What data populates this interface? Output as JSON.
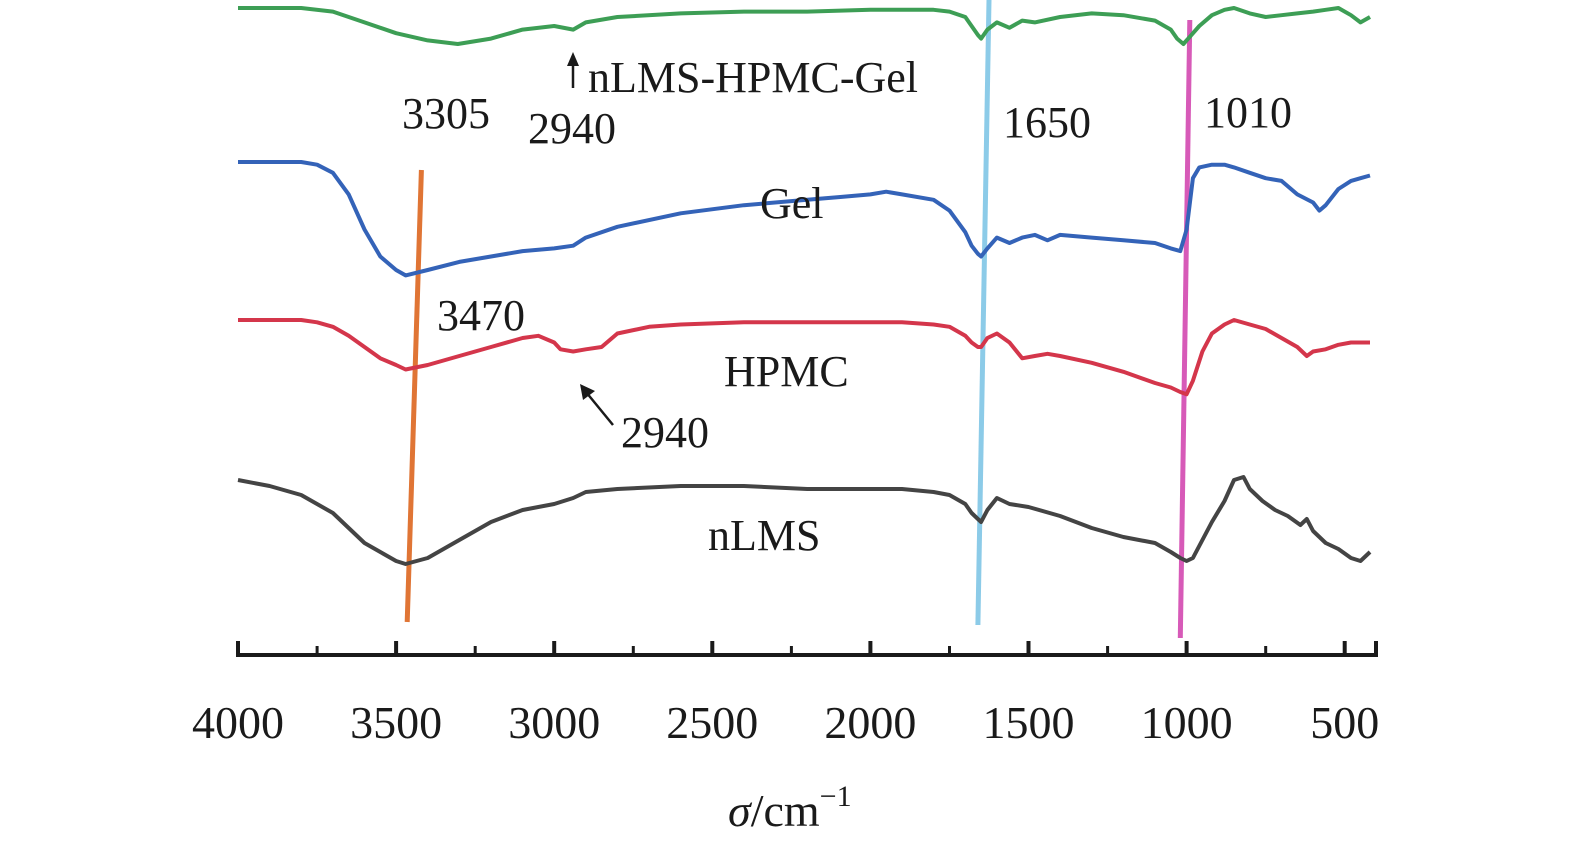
{
  "chart_data": {
    "type": "line",
    "title": "",
    "xlabel_symbol": "σ",
    "xlabel_unit": "/cm",
    "xlabel_exponent": "−1",
    "xlim": [
      4000,
      420
    ],
    "x_ticks": [
      4000,
      3500,
      3000,
      2500,
      2000,
      1500,
      1000,
      500
    ],
    "x_tick_labels": [
      "4000",
      "3500",
      "3000",
      "2500",
      "2000",
      "1500",
      "1000",
      "500"
    ],
    "y_ticks_shown": false,
    "series": [
      {
        "name": "nLMS-HPMC-Gel",
        "color": "#3d9e55",
        "x": [
          4000,
          3900,
          3800,
          3700,
          3600,
          3500,
          3400,
          3305,
          3200,
          3100,
          3000,
          2940,
          2900,
          2800,
          2600,
          2400,
          2200,
          2000,
          1900,
          1800,
          1750,
          1700,
          1680,
          1660,
          1650,
          1630,
          1600,
          1560,
          1520,
          1480,
          1400,
          1300,
          1200,
          1100,
          1050,
          1030,
          1010,
          990,
          960,
          920,
          880,
          850,
          800,
          750,
          700,
          650,
          600,
          560,
          520,
          480,
          450,
          420
        ],
        "values": [
          100,
          100,
          100,
          98,
          92,
          86,
          82,
          80,
          83,
          88,
          90,
          88,
          92,
          95,
          97,
          98,
          98,
          99,
          99,
          99,
          98,
          95,
          90,
          85,
          83,
          88,
          92,
          89,
          93,
          92,
          95,
          97,
          96,
          93,
          88,
          83,
          80,
          84,
          90,
          96,
          99,
          100,
          97,
          95,
          96,
          97,
          98,
          99,
          100,
          96,
          92,
          95
        ]
      },
      {
        "name": "Gel",
        "color": "#3463b8",
        "x": [
          4000,
          3900,
          3800,
          3750,
          3700,
          3650,
          3600,
          3550,
          3500,
          3470,
          3400,
          3300,
          3200,
          3100,
          3000,
          2940,
          2900,
          2800,
          2600,
          2400,
          2200,
          2100,
          2000,
          1950,
          1900,
          1800,
          1750,
          1700,
          1680,
          1660,
          1650,
          1630,
          1600,
          1560,
          1520,
          1480,
          1440,
          1400,
          1300,
          1200,
          1100,
          1050,
          1020,
          1000,
          980,
          960,
          920,
          880,
          850,
          800,
          750,
          700,
          650,
          600,
          580,
          560,
          520,
          480,
          450,
          420
        ],
        "values": [
          100,
          100,
          100,
          99,
          96,
          88,
          75,
          65,
          60,
          58,
          60,
          63,
          65,
          67,
          68,
          69,
          72,
          76,
          81,
          84,
          86,
          87,
          88,
          89,
          88,
          86,
          82,
          74,
          69,
          66,
          65,
          68,
          72,
          70,
          72,
          73,
          71,
          73,
          72,
          71,
          70,
          68,
          67,
          75,
          94,
          98,
          99,
          99,
          98,
          96,
          94,
          93,
          88,
          85,
          82,
          84,
          90,
          93,
          94,
          95
        ]
      },
      {
        "name": "HPMC",
        "color": "#d4364b",
        "x": [
          4000,
          3900,
          3800,
          3750,
          3700,
          3650,
          3600,
          3550,
          3500,
          3470,
          3400,
          3300,
          3200,
          3100,
          3050,
          3000,
          2980,
          2940,
          2900,
          2850,
          2800,
          2700,
          2600,
          2400,
          2200,
          2000,
          1900,
          1800,
          1750,
          1700,
          1680,
          1660,
          1650,
          1630,
          1600,
          1560,
          1520,
          1480,
          1440,
          1400,
          1300,
          1200,
          1100,
          1050,
          1020,
          1000,
          980,
          950,
          920,
          880,
          850,
          800,
          750,
          700,
          650,
          620,
          600,
          560,
          520,
          480,
          450,
          420
        ],
        "values": [
          100,
          100,
          100,
          99,
          97,
          93,
          88,
          83,
          80,
          78,
          80,
          84,
          88,
          92,
          93,
          90,
          87,
          86,
          87,
          88,
          94,
          97,
          98,
          99,
          99,
          99,
          99,
          98,
          97,
          93,
          90,
          88,
          88,
          92,
          94,
          90,
          83,
          84,
          85,
          84,
          81,
          77,
          72,
          70,
          68,
          67,
          73,
          86,
          94,
          98,
          100,
          98,
          96,
          92,
          88,
          84,
          86,
          87,
          89,
          90,
          90,
          90
        ]
      },
      {
        "name": "nLMS",
        "color": "#444444",
        "x": [
          4000,
          3900,
          3800,
          3700,
          3650,
          3600,
          3550,
          3500,
          3470,
          3400,
          3300,
          3200,
          3100,
          3000,
          2940,
          2900,
          2800,
          2600,
          2400,
          2200,
          2000,
          1900,
          1800,
          1750,
          1700,
          1680,
          1660,
          1650,
          1630,
          1600,
          1560,
          1500,
          1400,
          1300,
          1200,
          1100,
          1050,
          1020,
          1000,
          980,
          950,
          920,
          880,
          850,
          820,
          800,
          760,
          720,
          680,
          640,
          620,
          600,
          560,
          520,
          480,
          450,
          420
        ],
        "values": [
          100,
          98,
          95,
          89,
          84,
          79,
          76,
          73,
          72,
          74,
          80,
          86,
          90,
          92,
          94,
          96,
          97,
          98,
          98,
          97,
          97,
          97,
          96,
          95,
          92,
          89,
          87,
          86,
          90,
          94,
          92,
          91,
          88,
          84,
          81,
          79,
          76,
          74,
          73,
          74,
          80,
          86,
          93,
          100,
          101,
          97,
          93,
          90,
          88,
          85,
          87,
          83,
          79,
          77,
          74,
          73,
          76
        ]
      }
    ],
    "reference_lines": [
      {
        "color": "#e07535",
        "x_top": 3420,
        "x_bottom": 3465
      },
      {
        "color": "#8ccbe8",
        "x_top": 1625,
        "x_bottom": 1660
      },
      {
        "color": "#d75ab8",
        "x_top": 990,
        "x_bottom": 1020
      }
    ],
    "annotations": [
      {
        "text": "3305",
        "series": "nLMS-HPMC-Gel"
      },
      {
        "text": "2940",
        "series": "nLMS-HPMC-Gel"
      },
      {
        "text": "1650",
        "series": "nLMS-HPMC-Gel"
      },
      {
        "text": "1010",
        "series": "nLMS-HPMC-Gel"
      },
      {
        "text": "3470",
        "series": "Gel"
      },
      {
        "text": "2940",
        "series": "HPMC"
      }
    ]
  }
}
